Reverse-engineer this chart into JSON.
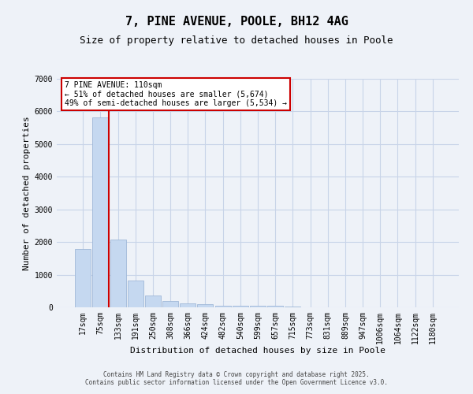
{
  "title1": "7, PINE AVENUE, POOLE, BH12 4AG",
  "title2": "Size of property relative to detached houses in Poole",
  "xlabel": "Distribution of detached houses by size in Poole",
  "ylabel": "Number of detached properties",
  "bar_labels": [
    "17sqm",
    "75sqm",
    "133sqm",
    "191sqm",
    "250sqm",
    "308sqm",
    "366sqm",
    "424sqm",
    "482sqm",
    "540sqm",
    "599sqm",
    "657sqm",
    "715sqm",
    "773sqm",
    "831sqm",
    "889sqm",
    "947sqm",
    "1006sqm",
    "1064sqm",
    "1122sqm",
    "1180sqm"
  ],
  "bar_values": [
    1780,
    5820,
    2080,
    820,
    360,
    200,
    110,
    90,
    60,
    50,
    50,
    40,
    20,
    0,
    0,
    0,
    0,
    0,
    0,
    0,
    0
  ],
  "bar_color": "#c5d8f0",
  "bar_edgecolor": "#a0b8d8",
  "grid_color": "#c8d4e8",
  "background_color": "#eef2f8",
  "plot_bg_color": "#eef2f8",
  "red_line_x": 1.5,
  "annotation_title": "7 PINE AVENUE: 110sqm",
  "annotation_line1": "← 51% of detached houses are smaller (5,674)",
  "annotation_line2": "49% of semi-detached houses are larger (5,534) →",
  "annotation_box_color": "#cc0000",
  "ylim": [
    0,
    7000
  ],
  "yticks": [
    0,
    1000,
    2000,
    3000,
    4000,
    5000,
    6000,
    7000
  ],
  "title1_fontsize": 11,
  "title2_fontsize": 9,
  "xlabel_fontsize": 8,
  "ylabel_fontsize": 8,
  "tick_fontsize": 7,
  "ann_fontsize": 7,
  "footer1": "Contains HM Land Registry data © Crown copyright and database right 2025.",
  "footer2": "Contains public sector information licensed under the Open Government Licence v3.0."
}
